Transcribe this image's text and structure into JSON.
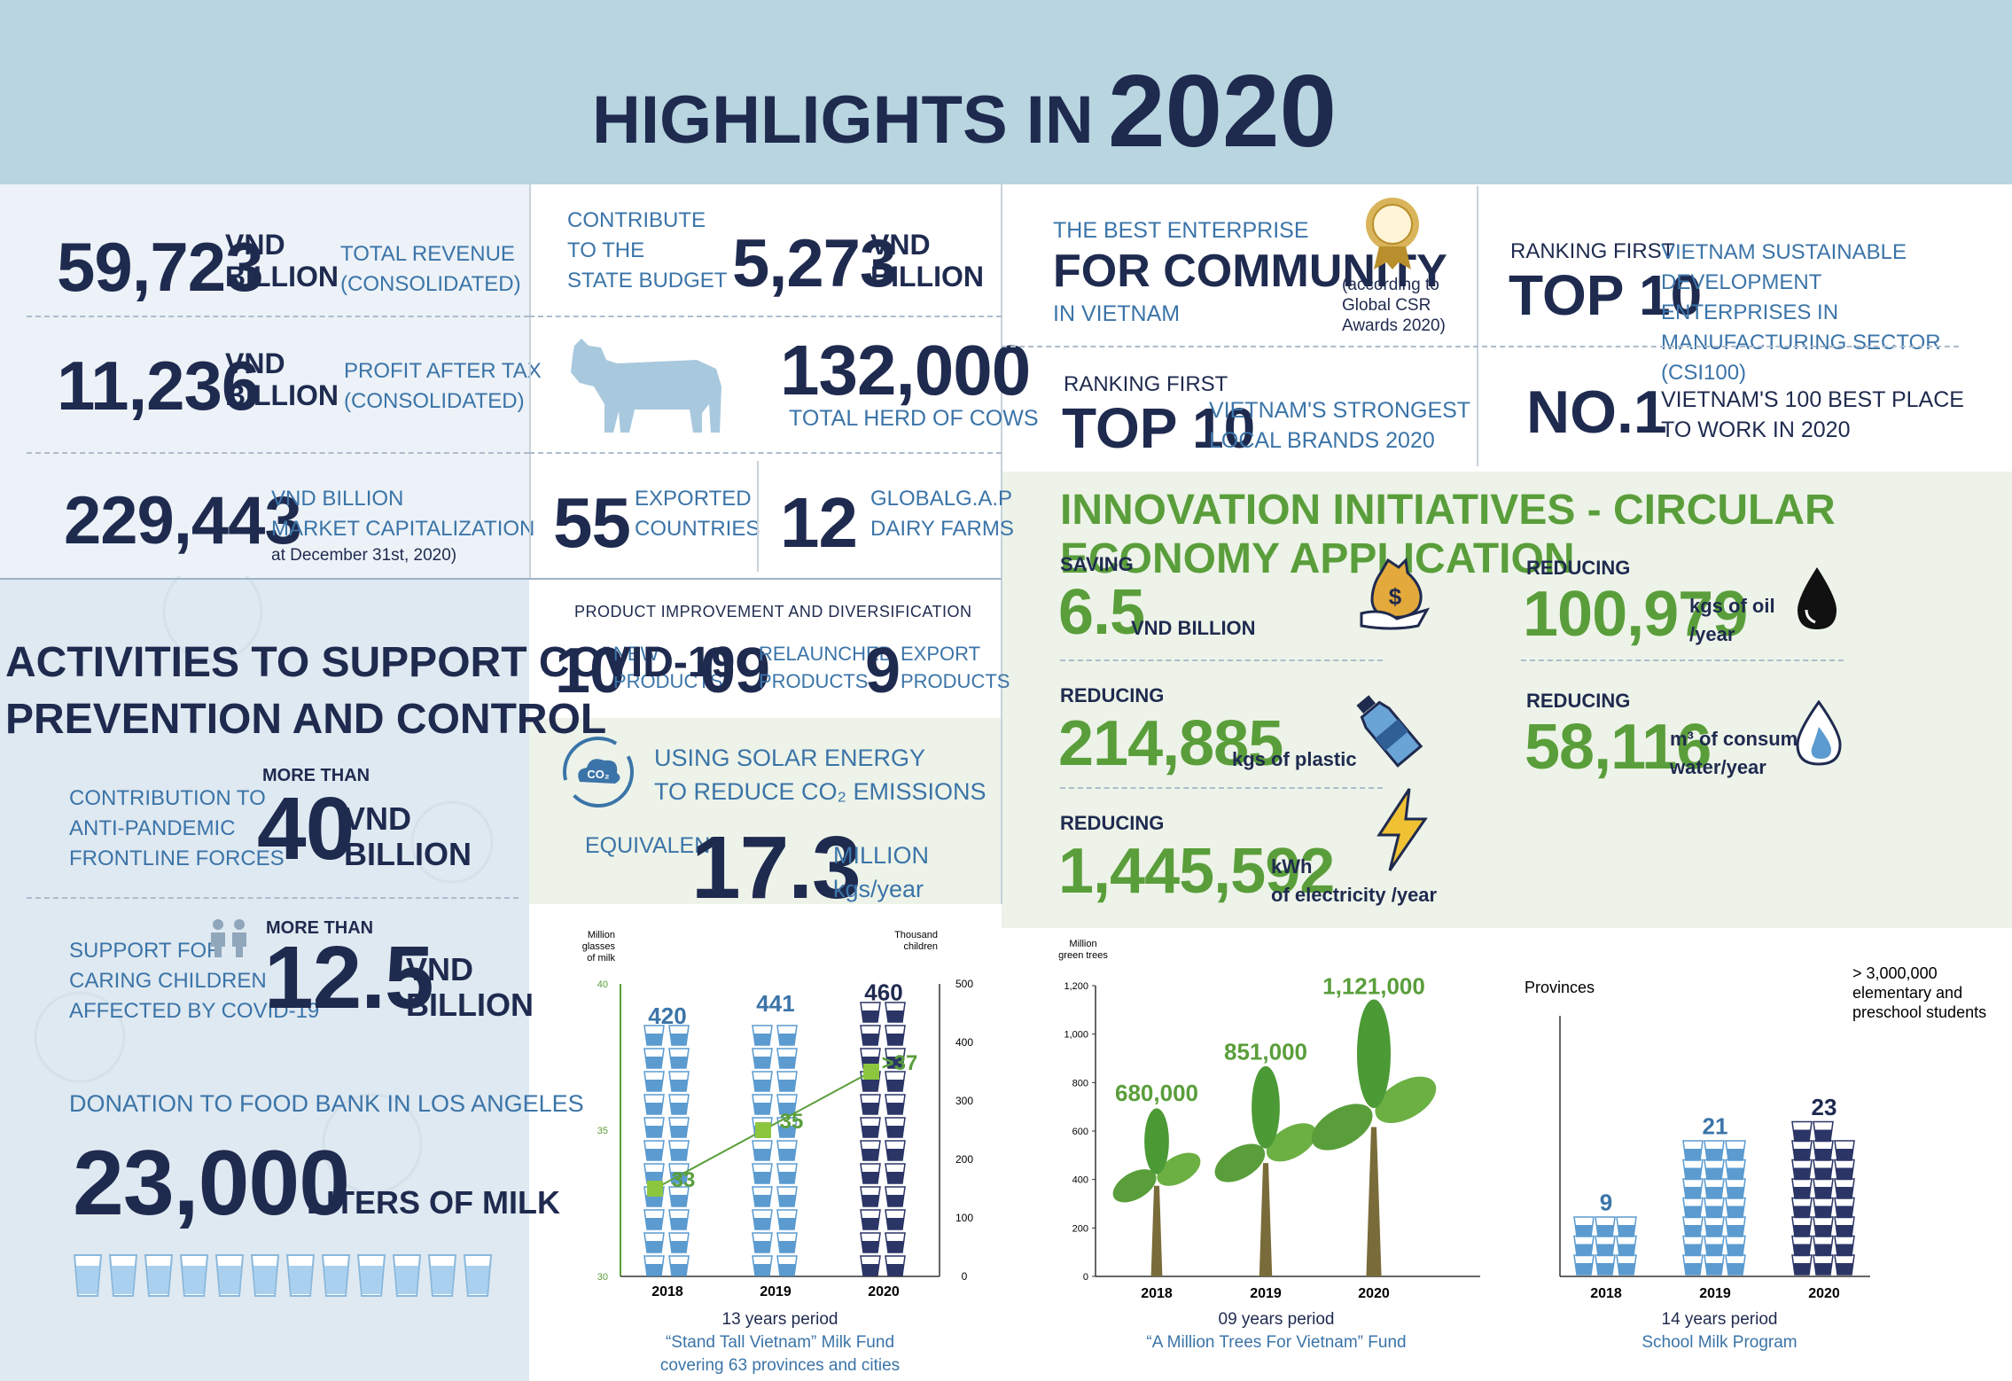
{
  "header": {
    "title": "HIGHLIGHTS IN",
    "year": "2020"
  },
  "revenue": {
    "value": "59,723",
    "unit1": "VND",
    "unit2": "BILLION",
    "label1": "TOTAL REVENUE",
    "label2": "(CONSOLIDATED)"
  },
  "profit": {
    "value": "11,236",
    "unit1": "VND",
    "unit2": "BILLION",
    "label1": "PROFIT AFTER TAX",
    "label2": "(CONSOLIDATED)"
  },
  "market_cap": {
    "value": "229,443",
    "label1": "VND BILLION",
    "label2": "MARKET CAPITALIZATION",
    "label3": "at December 31st, 2020)"
  },
  "state_budget": {
    "label1": "CONTRIBUTE",
    "label2": "TO THE",
    "label3": "STATE BUDGET",
    "value": "5,273",
    "unit1": "VND",
    "unit2": "BILLION"
  },
  "herd": {
    "value": "132,000",
    "label": "TOTAL HERD OF COWS"
  },
  "exported": {
    "value": "55",
    "label1": "EXPORTED",
    "label2": "COUNTRIES"
  },
  "globalgap": {
    "value": "12",
    "label1": "GLOBALG.A.P",
    "label2": "DAIRY FARMS"
  },
  "covid": {
    "title1": "ACTIVITIES TO SUPPORT COVID-19",
    "title2": "PREVENTION AND CONTROL",
    "contrib_label1": "CONTRIBUTION TO",
    "contrib_label2": "ANTI-PANDEMIC",
    "contrib_label3": "FRONTLINE FORCES",
    "contrib_more": "MORE THAN",
    "contrib_value": "40",
    "contrib_unit1": "VND",
    "contrib_unit2": "BILLION",
    "children_label1": "SUPPORT FOR",
    "children_label2": "CARING CHILDREN",
    "children_label3": "AFFECTED BY COVID-19",
    "children_more": "MORE THAN",
    "children_value": "12.5",
    "children_unit1": "VND",
    "children_unit2": "BILLION",
    "donation_label": "DONATION TO FOOD BANK IN LOS ANGELES",
    "donation_value": "23,000",
    "donation_unit": "LITERS OF MILK"
  },
  "products": {
    "heading": "PRODUCT IMPROVEMENT AND DIVERSIFICATION",
    "new_value": "10",
    "new_l1": "NEW",
    "new_l2": "PRODUCTS",
    "relaunched_value": "09",
    "relaunched_l1": "RELAUNCHED",
    "relaunched_l2": "PRODUCTS",
    "export_value": "9",
    "export_l1": "EXPORT",
    "export_l2": "PRODUCTS"
  },
  "solar": {
    "line1": "USING SOLAR ENERGY",
    "line2": "TO REDUCE CO₂ EMISSIONS",
    "equiv": "EQUIVALENT",
    "value": "17.3",
    "unit1": "MILLION",
    "unit2": "kgs/year",
    "icon_text": "CO₂"
  },
  "awards": {
    "best_l1": "THE BEST ENTERPRISE",
    "best_l2": "FOR COMMUNITY",
    "best_l3": "IN VIETNAM",
    "best_note1": "(according to",
    "best_note2": "Global CSR",
    "best_note3": "Awards 2020)",
    "csi_rank": "RANKING FIRST",
    "csi_top": "TOP 10",
    "csi_l1": "VIETNAM SUSTAINABLE DEVELOPMENT",
    "csi_l2": "ENTERPRISES IN MANUFACTURING SECTOR",
    "csi_l3": "(CSI100)",
    "brand_rank": "RANKING FIRST",
    "brand_top": "TOP 10",
    "brand_l1": "VIETNAM'S STRONGEST",
    "brand_l2": "LOCAL BRANDS 2020",
    "work_no": "NO.1",
    "work_l1": "VIETNAM'S 100 BEST PLACE",
    "work_l2": "TO WORK IN 2020"
  },
  "innovation": {
    "title": "INNOVATION INITIATIVES - CIRCULAR ECONOMY APPLICATION",
    "saving_label": "SAVING",
    "saving_value": "6.5",
    "saving_unit": "VND BILLION",
    "oil_label": "REDUCING",
    "oil_value": "100,979",
    "oil_unit1": "kgs of oil",
    "oil_unit2": "/year",
    "plastic_label": "REDUCING",
    "plastic_value": "214,885",
    "plastic_unit": "kgs of plastic",
    "water_label": "REDUCING",
    "water_value": "58,116",
    "water_unit1": "m³ of consumed",
    "water_unit2": "water/year",
    "elec_label": "REDUCING",
    "elec_value": "1,445,592",
    "elec_unit1": "kWh",
    "elec_unit2": "of electricity /year"
  },
  "chart_data": [
    {
      "type": "bar",
      "title": "",
      "categories": [
        "2018",
        "2019",
        "2020"
      ],
      "series": [
        {
          "name": "",
          "values": [
            420,
            441,
            460
          ]
        },
        {
          "name": "",
          "values": [
            33,
            35,
            37
          ]
        }
      ],
      "value_labels": [
        "420",
        "441",
        "460"
      ],
      "line_labels": [
        "33",
        "35",
        ">37"
      ],
      "left_axis_label": [
        "Million",
        "glasses",
        "of milk"
      ],
      "left_ticks": [
        "40",
        "35",
        "30"
      ],
      "left_range": [
        30,
        40
      ],
      "right_axis_label": [
        "Thousand",
        "children"
      ],
      "right_ticks": [
        "500",
        "400",
        "300",
        "200",
        "100",
        "0"
      ],
      "right_range": [
        0,
        500
      ],
      "caption1": "13 years period",
      "caption2": "“Stand Tall Vietnam” Milk Fund",
      "caption3": "covering 63 provinces and cities"
    },
    {
      "type": "bar",
      "title": "",
      "categories": [
        "2018",
        "2019",
        "2020"
      ],
      "values": [
        680,
        851,
        1121
      ],
      "value_labels": [
        "680,000",
        "851,000",
        "1,121,000"
      ],
      "axis_label": [
        "Million",
        "green trees"
      ],
      "ticks": [
        "1,200",
        "1,000",
        "800",
        "600",
        "400",
        "200",
        "0"
      ],
      "ylim": [
        0,
        1200
      ],
      "caption1": "09 years period",
      "caption2": "“A Million Trees For Vietnam” Fund"
    },
    {
      "type": "bar",
      "title": "",
      "categories": [
        "2018",
        "2019",
        "2020"
      ],
      "values": [
        9,
        21,
        23
      ],
      "value_labels": [
        "9",
        "21",
        "23"
      ],
      "axis_label": "Provinces",
      "note1": "> 3,000,000",
      "note2": "elementary and",
      "note3": "preschool students",
      "caption1": "14 years period",
      "caption2": "School Milk Program"
    }
  ],
  "colors": {
    "navy": "#1f2a4f",
    "blue": "#3b74a8",
    "green": "#5a9e3b",
    "header_bg": "#b8d5e0",
    "light_green": "#edf3e8",
    "milk_blue": "#5b9bd0"
  }
}
